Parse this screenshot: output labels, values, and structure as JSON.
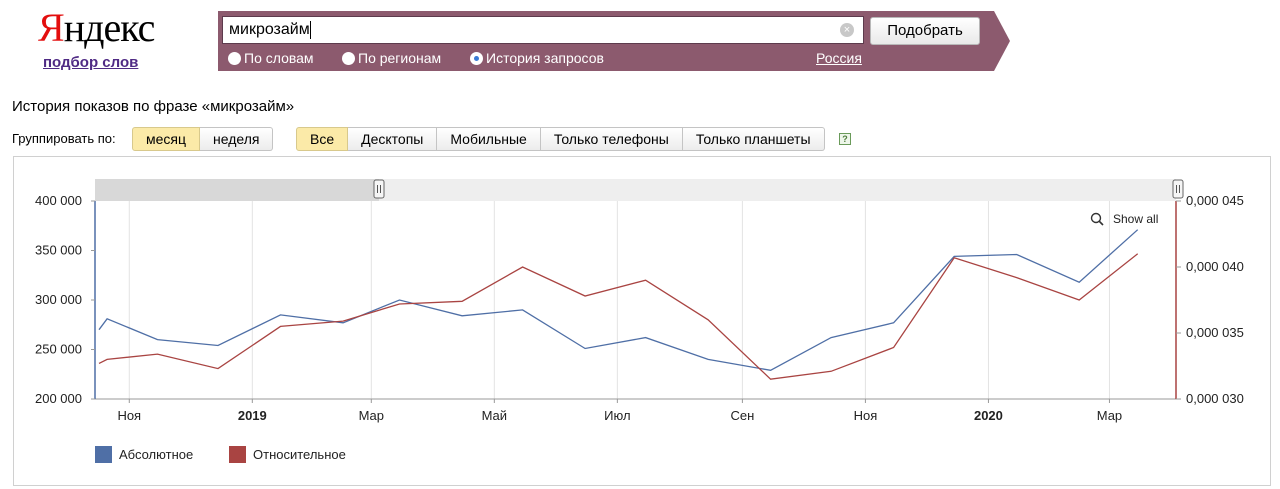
{
  "logo": {
    "first_letter": "Я",
    "rest": "ндекс",
    "subtitle": "подбор слов"
  },
  "search": {
    "query": "микрозайм",
    "submit_label": "Подобрать",
    "modes": [
      {
        "label": "По словам",
        "checked": false
      },
      {
        "label": "По регионам",
        "checked": false
      },
      {
        "label": "История запросов",
        "checked": true
      }
    ],
    "region": "Россия",
    "banner_color": "#8c5a6e"
  },
  "page_title": "История показов по фразе «микрозайм»",
  "grouping": {
    "label": "Группировать по:",
    "options": [
      {
        "label": "месяц",
        "active": true
      },
      {
        "label": "неделя",
        "active": false
      }
    ]
  },
  "devices": [
    {
      "label": "Все",
      "active": true
    },
    {
      "label": "Десктопы",
      "active": false
    },
    {
      "label": "Мобильные",
      "active": false
    },
    {
      "label": "Только телефоны",
      "active": false
    },
    {
      "label": "Только планшеты",
      "active": false
    }
  ],
  "help_icon": "?",
  "chart_data": {
    "type": "line",
    "show_all_label": "Show all",
    "x": [
      "2018-10",
      "2018-11",
      "2018-12",
      "2019-01",
      "2019-02",
      "2019-03",
      "2019-04",
      "2019-05",
      "2019-06",
      "2019-07",
      "2019-08",
      "2019-09",
      "2019-10",
      "2019-11",
      "2019-12",
      "2020-01",
      "2020-02",
      "2020-03"
    ],
    "x_tick_labels": [
      {
        "month": "2018-11",
        "label": "Ноя",
        "bold": false
      },
      {
        "month": "2019-01",
        "label": "2019",
        "bold": true
      },
      {
        "month": "2019-03",
        "label": "Мар",
        "bold": false
      },
      {
        "month": "2019-05",
        "label": "Май",
        "bold": false
      },
      {
        "month": "2019-07",
        "label": "Июл",
        "bold": false
      },
      {
        "month": "2019-09",
        "label": "Сен",
        "bold": false
      },
      {
        "month": "2019-11",
        "label": "Ноя",
        "bold": false
      },
      {
        "month": "2020-01",
        "label": "2020",
        "bold": true
      },
      {
        "month": "2020-03",
        "label": "Мар",
        "bold": false
      }
    ],
    "y_left": {
      "min": 200000,
      "max": 400000,
      "ticks": [
        "200 000",
        "250 000",
        "300 000",
        "350 000",
        "400 000"
      ],
      "tick_values": [
        200000,
        250000,
        300000,
        350000,
        400000
      ]
    },
    "y_right": {
      "min": 3e-05,
      "max": 4.5e-05,
      "ticks": [
        "0,000 030",
        "0,000 035",
        "0,000 040",
        "0,000 045"
      ],
      "tick_values": [
        3e-05,
        3.5e-05,
        4e-05,
        4.5e-05
      ]
    },
    "series": [
      {
        "name": "Абсолютное",
        "axis": "left",
        "color": "#4f6fa6",
        "points": [
          [
            "2018-10-17",
            270000
          ],
          [
            "2018-10-21",
            281000
          ],
          [
            "2018-11-15",
            260000
          ],
          [
            "2018-12-15",
            254000
          ],
          [
            "2019-01-15",
            285000
          ],
          [
            "2019-02-15",
            277000
          ],
          [
            "2019-03-15",
            300000
          ],
          [
            "2019-04-15",
            284000
          ],
          [
            "2019-05-15",
            290000
          ],
          [
            "2019-06-15",
            251000
          ],
          [
            "2019-07-15",
            262000
          ],
          [
            "2019-08-15",
            240000
          ],
          [
            "2019-09-15",
            229000
          ],
          [
            "2019-10-15",
            262000
          ],
          [
            "2019-11-15",
            277000
          ],
          [
            "2019-12-15",
            344000
          ],
          [
            "2020-01-15",
            346000
          ],
          [
            "2020-02-15",
            318000
          ],
          [
            "2020-03-15",
            371000
          ]
        ]
      },
      {
        "name": "Относительное",
        "axis": "right",
        "color": "#a94442",
        "points": [
          [
            "2018-10-17",
            3.27e-05
          ],
          [
            "2018-10-21",
            3.3e-05
          ],
          [
            "2018-11-15",
            3.34e-05
          ],
          [
            "2018-12-15",
            3.23e-05
          ],
          [
            "2019-01-15",
            3.55e-05
          ],
          [
            "2019-02-15",
            3.59e-05
          ],
          [
            "2019-03-15",
            3.72e-05
          ],
          [
            "2019-04-15",
            3.74e-05
          ],
          [
            "2019-05-15",
            4e-05
          ],
          [
            "2019-06-15",
            3.78e-05
          ],
          [
            "2019-07-15",
            3.9e-05
          ],
          [
            "2019-08-15",
            3.6e-05
          ],
          [
            "2019-09-15",
            3.15e-05
          ],
          [
            "2019-10-15",
            3.21e-05
          ],
          [
            "2019-11-15",
            3.39e-05
          ],
          [
            "2019-12-15",
            4.07e-05
          ],
          [
            "2020-01-15",
            3.92e-05
          ],
          [
            "2020-02-15",
            3.75e-05
          ],
          [
            "2020-03-15",
            4.1e-05
          ]
        ]
      }
    ],
    "grid": true,
    "legend": "bottom-left",
    "navigator_color": "#d8d8d8"
  }
}
